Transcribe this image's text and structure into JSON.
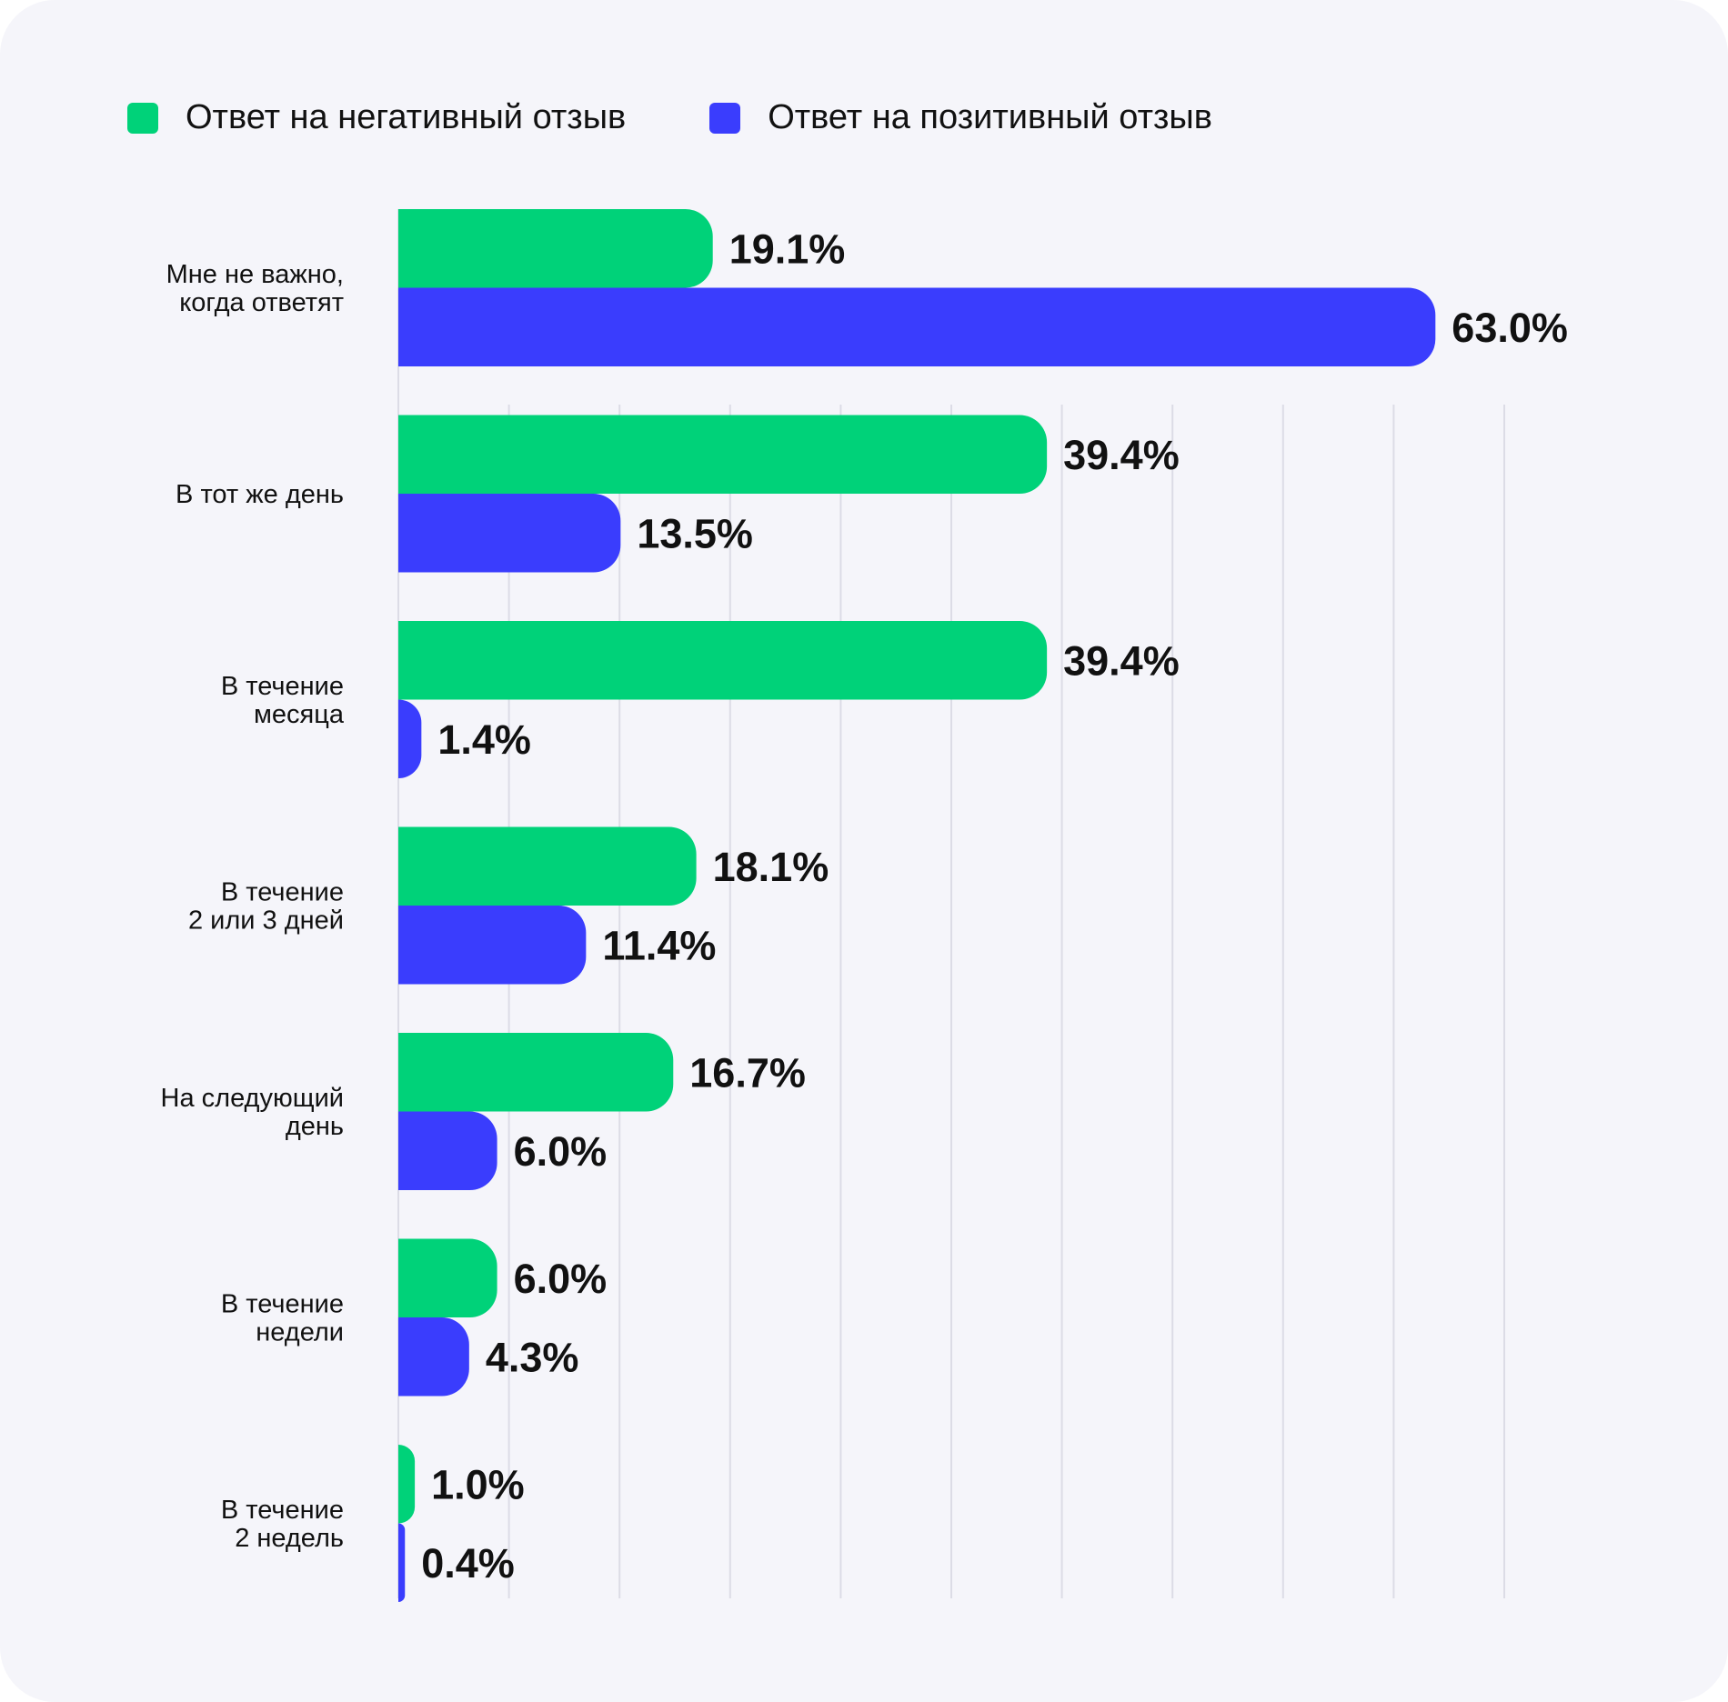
{
  "chart_data": {
    "type": "bar",
    "orientation": "horizontal",
    "categories": [
      [
        "Мне не важно,",
        "когда ответят"
      ],
      [
        "В тот же день"
      ],
      [
        "В течение",
        "месяца"
      ],
      [
        "В течение",
        "2 или 3 дней"
      ],
      [
        "На следующий",
        "день"
      ],
      [
        "В течение",
        "недели"
      ],
      [
        "В течение",
        "2 недель"
      ]
    ],
    "series": [
      {
        "name": "Ответ на негативный отзыв",
        "color": "#00d279",
        "values": [
          19.1,
          39.4,
          39.4,
          18.1,
          16.7,
          6.0,
          1.0
        ],
        "labels": [
          "19.1%",
          "39.4%",
          "39.4%",
          "18.1%",
          "16.7%",
          "6.0%",
          "1.0%"
        ]
      },
      {
        "name": "Ответ на позитивный отзыв",
        "color": "#3a3dfd",
        "values": [
          63.0,
          13.5,
          1.4,
          11.4,
          6.0,
          4.3,
          0.4
        ],
        "labels": [
          "63.0%",
          "13.5%",
          "1.4%",
          "11.4%",
          "6.0%",
          "4.3%",
          "0.4%"
        ]
      }
    ],
    "xlim": [
      0,
      70
    ],
    "grid": true,
    "legend_position": "top-left"
  }
}
